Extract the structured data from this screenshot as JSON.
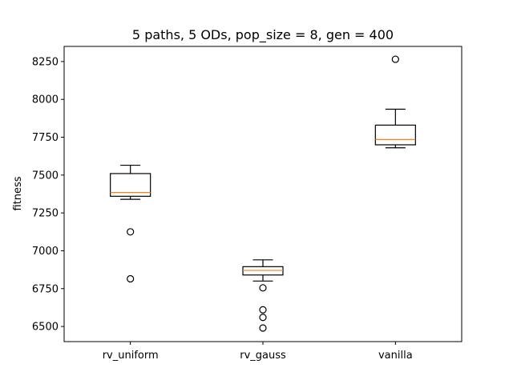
{
  "chart_data": {
    "type": "box",
    "title": "5 paths, 5 ODs, pop_size = 8, gen = 400",
    "xlabel": "",
    "ylabel": "fitness",
    "ylim": [
      6400,
      8350
    ],
    "yticks": [
      6500,
      6750,
      7000,
      7250,
      7500,
      7750,
      8000,
      8250
    ],
    "ytick_labels": [
      "6500",
      "6750",
      "7000",
      "7250",
      "7500",
      "7750",
      "8000",
      "8250"
    ],
    "categories": [
      "rv_uniform",
      "rv_gauss",
      "vanilla"
    ],
    "series": [
      {
        "category": "rv_uniform",
        "whisker_low": 7340,
        "q1": 7360,
        "median": 7385,
        "q3": 7510,
        "whisker_high": 7565,
        "outliers": [
          7125,
          6815
        ]
      },
      {
        "category": "rv_gauss",
        "whisker_low": 6800,
        "q1": 6840,
        "median": 6870,
        "q3": 6895,
        "whisker_high": 6940,
        "outliers": [
          6755,
          6610,
          6560,
          6490
        ]
      },
      {
        "category": "vanilla",
        "whisker_low": 7680,
        "q1": 7700,
        "median": 7735,
        "q3": 7830,
        "whisker_high": 7935,
        "outliers": [
          8265
        ]
      }
    ],
    "grid": false,
    "colors": {
      "box": "#000000",
      "median": "#ff7f0e",
      "whisker": "#000000",
      "outlier": "#000000",
      "axes": "#000000",
      "background": "#ffffff"
    }
  }
}
